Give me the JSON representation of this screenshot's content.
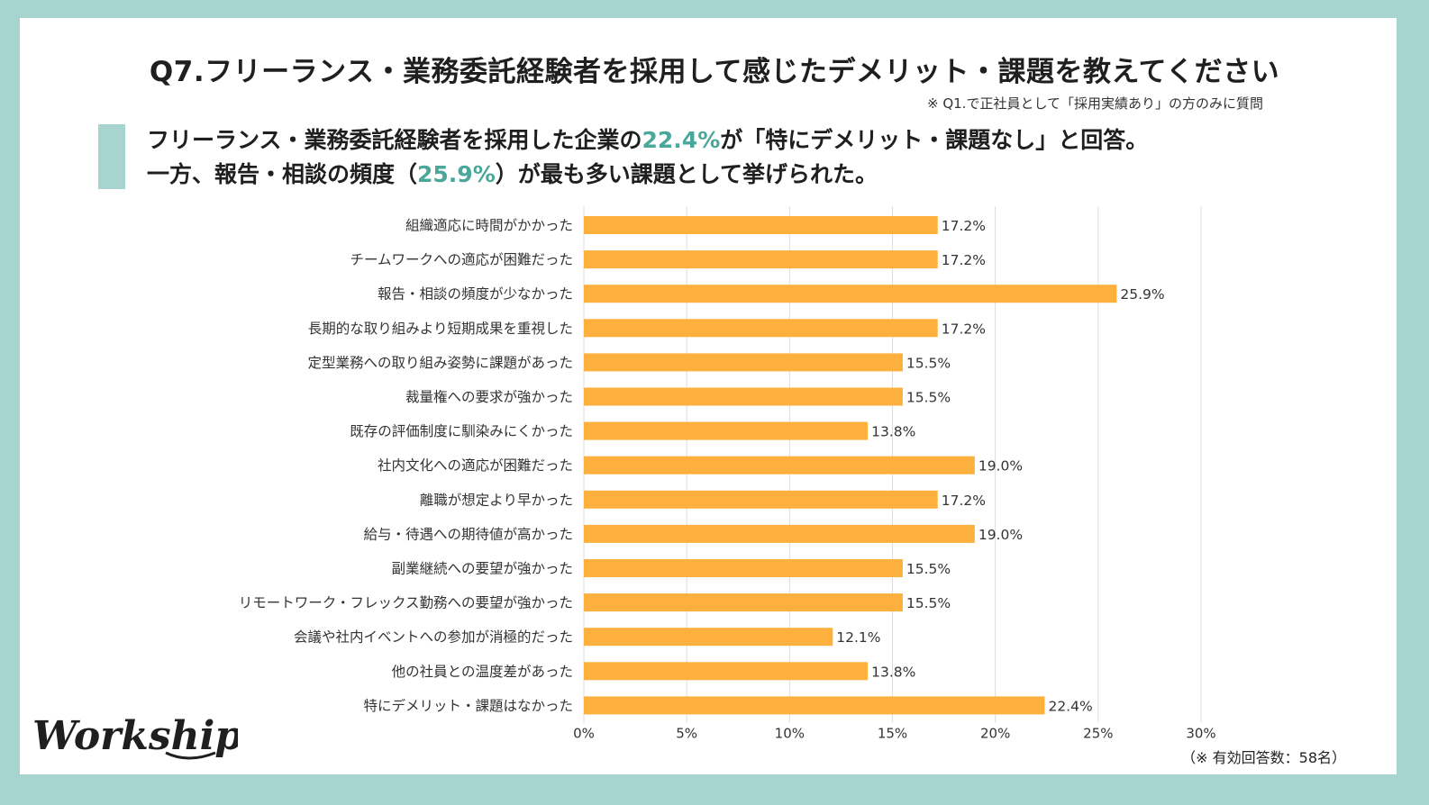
{
  "title": "Q7.フリーランス・業務委託経験者を採用して感じたデメリット・課題を教えてください",
  "note": "※ Q1.で正社員として「採用実績あり」の方のみに質問",
  "headline": {
    "line1_a": "フリーランス・業務委託経験者を採用した企業の",
    "line1_hl": "22.4%",
    "line1_b": "が「特にデメリット・課題なし」と回答。",
    "line2_a": "一方、報告・相談の頻度（",
    "line2_hl": "25.9%",
    "line2_b": "）が最も多い課題として挙げられた。"
  },
  "footnote": "（※ 有効回答数：58名）",
  "logo_text": "Workship",
  "colors": {
    "bar": "#fdb03d",
    "accent": "#4aa79a",
    "frame": "#a7d4ce",
    "grid": "#dddddd"
  },
  "chart_data": {
    "type": "bar",
    "orientation": "horizontal",
    "categories": [
      "組織適応に時間がかかった",
      "チームワークへの適応が困難だった",
      "報告・相談の頻度が少なかった",
      "長期的な取り組みより短期成果を重視した",
      "定型業務への取り組み姿勢に課題があった",
      "裁量権への要求が強かった",
      "既存の評価制度に馴染みにくかった",
      "社内文化への適応が困難だった",
      "離職が想定より早かった",
      "給与・待遇への期待値が高かった",
      "副業継続への要望が強かった",
      "リモートワーク・フレックス勤務への要望が強かった",
      "会議や社内イベントへの参加が消極的だった",
      "他の社員との温度差があった",
      "特にデメリット・課題はなかった"
    ],
    "values": [
      17.2,
      17.2,
      25.9,
      17.2,
      15.5,
      15.5,
      13.8,
      19.0,
      17.2,
      19.0,
      15.5,
      15.5,
      12.1,
      13.8,
      22.4
    ],
    "value_labels": [
      "17.2%",
      "17.2%",
      "25.9%",
      "17.2%",
      "15.5%",
      "15.5%",
      "13.8%",
      "19.0%",
      "17.2%",
      "19.0%",
      "15.5%",
      "15.5%",
      "12.1%",
      "13.8%",
      "22.4%"
    ],
    "xlim": [
      0,
      30
    ],
    "xticks": [
      "0%",
      "5%",
      "10%",
      "15%",
      "20%",
      "25%",
      "30%"
    ],
    "grid": true
  }
}
